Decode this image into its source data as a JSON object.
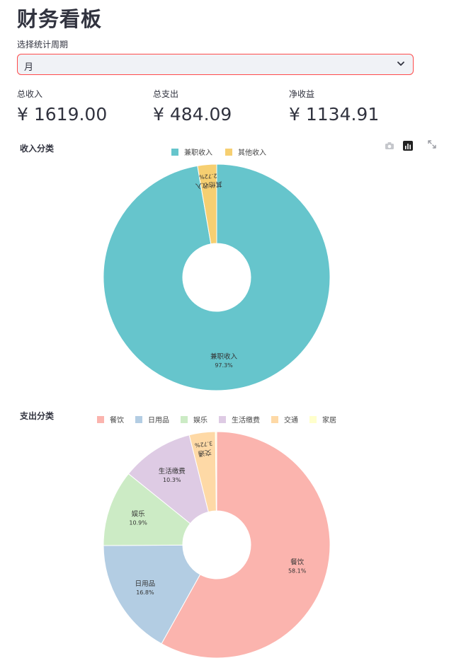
{
  "title": "财务看板",
  "period": {
    "label": "选择统计周期",
    "value": "月"
  },
  "metrics": [
    {
      "label": "总收入",
      "value": "¥ 1619.00"
    },
    {
      "label": "总支出",
      "value": "¥ 484.09"
    },
    {
      "label": "净收益",
      "value": "¥ 1134.91"
    }
  ],
  "icons": {
    "toolbar": [
      "camera-icon",
      "chart-icon",
      "expand-icon"
    ],
    "select": "chevron-down-icon"
  },
  "chart_data": [
    {
      "type": "pie",
      "title": "收入分类",
      "donut": true,
      "legend_position": "top",
      "categories": [
        "兼职收入",
        "其他收入"
      ],
      "values": [
        97.3,
        2.72
      ],
      "percent_labels": [
        "97.3%",
        "2.72%"
      ],
      "colors": [
        "#66c5cc",
        "#f6cf71"
      ]
    },
    {
      "type": "pie",
      "title": "支出分类",
      "donut": true,
      "legend_position": "top",
      "categories": [
        "餐饮",
        "日用品",
        "娱乐",
        "生活缴费",
        "交通",
        "家居"
      ],
      "values": [
        58.1,
        16.8,
        10.9,
        10.3,
        3.72,
        0.18
      ],
      "percent_labels": [
        "58.1%",
        "16.8%",
        "10.9%",
        "10.3%",
        "3.72%",
        ""
      ],
      "colors": [
        "#fbb4ae",
        "#b3cde3",
        "#ccebc5",
        "#decbe4",
        "#fed9a6",
        "#ffffcc"
      ]
    }
  ]
}
